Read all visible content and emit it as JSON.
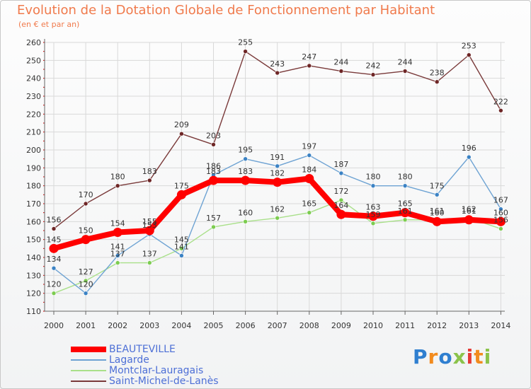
{
  "header": {
    "title": "Evolution de la Dotation Globale de Fonctionnement par Habitant",
    "subtitle": "(en € et par an)"
  },
  "logo": {
    "text": "Proxiti"
  },
  "colors": {
    "title": "#f07a4c",
    "legend_text": "#4d6fd6",
    "axis": "#666666",
    "grid": "#d9d9d9",
    "tick_mark": "#cc0000"
  },
  "chart_data": {
    "type": "line",
    "title": "Evolution de la Dotation Globale de Fonctionnement par Habitant",
    "subtitle": "(en € et par an)",
    "xlabel": "",
    "ylabel": "",
    "x": [
      "2000",
      "2001",
      "2002",
      "2003",
      "2004",
      "2005",
      "2006",
      "2007",
      "2008",
      "2009",
      "2010",
      "2011",
      "2012",
      "2013",
      "2014"
    ],
    "ylim": [
      110,
      260
    ],
    "yticks": [
      110,
      120,
      130,
      140,
      150,
      160,
      170,
      180,
      190,
      200,
      210,
      220,
      230,
      240,
      250,
      260
    ],
    "grid": true,
    "legend_position": "bottom-left",
    "series": [
      {
        "name": "BEAUTEVILLE",
        "color": "#ff0000",
        "marker_color": "#ff0000",
        "values": [
          145,
          150,
          154,
          155,
          175,
          183,
          183,
          182,
          184,
          164,
          163,
          165,
          160,
          161,
          160
        ]
      },
      {
        "name": "Lagarde",
        "color": "#6ea3d3",
        "marker_color": "#3b82c4",
        "values": [
          134,
          120,
          141,
          153,
          141,
          186,
          195,
          191,
          197,
          187,
          180,
          180,
          175,
          196,
          167
        ]
      },
      {
        "name": "Montclar-Lauragais",
        "color": "#a9e08a",
        "marker_color": "#7ccc50",
        "values": [
          120,
          127,
          137,
          137,
          145,
          157,
          160,
          162,
          165,
          172,
          159,
          161,
          161,
          162,
          156
        ]
      },
      {
        "name": "Saint-Michel-de-Lanès",
        "color": "#7a3a3a",
        "marker_color": "#6e2626",
        "values": [
          156,
          170,
          180,
          183,
          209,
          203,
          255,
          243,
          247,
          244,
          242,
          244,
          238,
          253,
          222
        ]
      }
    ],
    "value_labels": {
      "BEAUTEVILLE": [
        "145",
        "150",
        "154",
        "155",
        "175",
        "183",
        "183",
        "182",
        "184",
        "164",
        "163",
        "165",
        "160",
        "161",
        "160"
      ],
      "Lagarde": [
        "134",
        "120",
        "141",
        "153",
        "141",
        "186",
        "195",
        "191",
        "197",
        "187",
        "180",
        "180",
        "175",
        "196",
        "167"
      ],
      "Montclar-Lauragais": [
        "120",
        "127",
        "137",
        "137",
        "145",
        "157",
        "160",
        "162",
        "165",
        "172",
        "159",
        "161",
        "161",
        "162",
        "156"
      ],
      "Saint-Michel-de-Lanès": [
        "156",
        "170",
        "180",
        "183",
        "209",
        "203",
        "255",
        "243",
        "247",
        "244",
        "242",
        "244",
        "238",
        "253",
        "222"
      ]
    }
  }
}
